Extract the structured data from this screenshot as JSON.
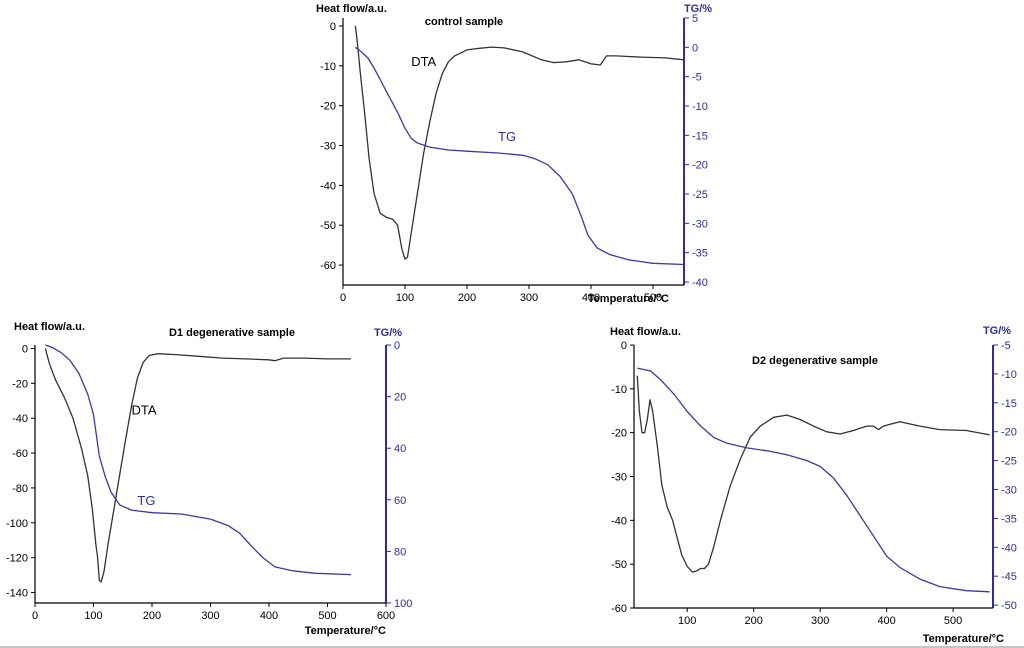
{
  "chart_data": [
    {
      "type": "line",
      "title": "control sample",
      "xlabel": "Temperature/°C",
      "ylabel": "Heat flow/a.u.",
      "y2label": "TG/%",
      "xlim": [
        0,
        550
      ],
      "ylim": [
        -65,
        2
      ],
      "y2lim": [
        -40.5,
        5
      ],
      "x_ticks": [
        0,
        100,
        200,
        300,
        400,
        500
      ],
      "y_ticks": [
        0,
        -10,
        -20,
        -30,
        -40,
        -50,
        -60
      ],
      "y2_ticks": [
        5,
        0,
        -5,
        -10,
        -15,
        -20,
        -25,
        -30,
        -35,
        -40
      ],
      "y2_inverted": false,
      "series": [
        {
          "name": "DTA",
          "axis": "left",
          "color": "#333333",
          "label": "DTA",
          "label_at": [
            110,
            -10
          ],
          "points": [
            [
              20,
              0
            ],
            [
              23,
              -4
            ],
            [
              28,
              -12
            ],
            [
              35,
              -22
            ],
            [
              42,
              -33
            ],
            [
              50,
              -42
            ],
            [
              60,
              -47
            ],
            [
              70,
              -48
            ],
            [
              80,
              -48.5
            ],
            [
              88,
              -50
            ],
            [
              95,
              -56
            ],
            [
              100,
              -58.5
            ],
            [
              104,
              -58
            ],
            [
              110,
              -52
            ],
            [
              120,
              -42
            ],
            [
              130,
              -32
            ],
            [
              140,
              -24
            ],
            [
              150,
              -17
            ],
            [
              160,
              -12
            ],
            [
              170,
              -9
            ],
            [
              180,
              -7.5
            ],
            [
              200,
              -6
            ],
            [
              220,
              -5.6
            ],
            [
              240,
              -5.3
            ],
            [
              260,
              -5.5
            ],
            [
              290,
              -6.5
            ],
            [
              320,
              -8.5
            ],
            [
              340,
              -9.2
            ],
            [
              360,
              -9
            ],
            [
              380,
              -8.5
            ],
            [
              400,
              -9.5
            ],
            [
              415,
              -9.8
            ],
            [
              425,
              -7.5
            ],
            [
              440,
              -7.5
            ],
            [
              480,
              -7.8
            ],
            [
              520,
              -8
            ],
            [
              550,
              -8.5
            ]
          ]
        },
        {
          "name": "TG",
          "axis": "right",
          "color": "#3a3aa0",
          "label": "TG",
          "label_at": [
            250,
            -16
          ],
          "points": [
            [
              20,
              0
            ],
            [
              30,
              -0.8
            ],
            [
              40,
              -1.8
            ],
            [
              50,
              -3.5
            ],
            [
              60,
              -5.5
            ],
            [
              70,
              -7.5
            ],
            [
              80,
              -9.5
            ],
            [
              90,
              -11.5
            ],
            [
              100,
              -13.8
            ],
            [
              110,
              -15.5
            ],
            [
              120,
              -16.3
            ],
            [
              140,
              -17
            ],
            [
              170,
              -17.5
            ],
            [
              200,
              -17.7
            ],
            [
              250,
              -18
            ],
            [
              290,
              -18.4
            ],
            [
              310,
              -19
            ],
            [
              330,
              -20
            ],
            [
              350,
              -22
            ],
            [
              370,
              -25
            ],
            [
              385,
              -29
            ],
            [
              395,
              -32
            ],
            [
              410,
              -34.2
            ],
            [
              430,
              -35.3
            ],
            [
              460,
              -36.2
            ],
            [
              500,
              -36.8
            ],
            [
              550,
              -37
            ]
          ]
        }
      ]
    },
    {
      "type": "line",
      "title": "D1 degenerative sample",
      "xlabel": "Temperature/°C",
      "ylabel": "Heat flow/a.u.",
      "y2label": "TG/%",
      "xlim": [
        0,
        600
      ],
      "ylim": [
        -146,
        2
      ],
      "y2lim": [
        0,
        100
      ],
      "x_ticks": [
        0,
        100,
        200,
        300,
        400,
        500,
        600
      ],
      "y_ticks": [
        0,
        -20,
        -40,
        -60,
        -80,
        -100,
        -120,
        -140
      ],
      "y2_ticks": [
        0,
        20,
        40,
        60,
        80,
        100
      ],
      "y2_inverted": true,
      "series": [
        {
          "name": "DTA",
          "axis": "left",
          "color": "#333333",
          "label": "DTA",
          "label_at": [
            165,
            -38
          ],
          "points": [
            [
              18,
              0
            ],
            [
              20,
              -3
            ],
            [
              25,
              -9
            ],
            [
              35,
              -18
            ],
            [
              50,
              -28
            ],
            [
              65,
              -40
            ],
            [
              80,
              -58
            ],
            [
              90,
              -73
            ],
            [
              98,
              -92
            ],
            [
              104,
              -112
            ],
            [
              107,
              -120
            ],
            [
              110,
              -133
            ],
            [
              113,
              -134
            ],
            [
              118,
              -128
            ],
            [
              125,
              -112
            ],
            [
              135,
              -92
            ],
            [
              145,
              -72
            ],
            [
              155,
              -52
            ],
            [
              165,
              -33
            ],
            [
              175,
              -17
            ],
            [
              185,
              -8
            ],
            [
              195,
              -4
            ],
            [
              210,
              -3
            ],
            [
              240,
              -3.5
            ],
            [
              280,
              -4.5
            ],
            [
              320,
              -5.5
            ],
            [
              360,
              -6
            ],
            [
              400,
              -6.5
            ],
            [
              410,
              -7
            ],
            [
              425,
              -5.5
            ],
            [
              460,
              -5.5
            ],
            [
              500,
              -6
            ],
            [
              540,
              -6
            ]
          ]
        },
        {
          "name": "TG",
          "axis": "right",
          "color": "#3a3aa0",
          "label": "TG",
          "label_at": [
            175,
            62
          ],
          "points": [
            [
              18,
              0
            ],
            [
              30,
              1
            ],
            [
              45,
              3
            ],
            [
              60,
              6
            ],
            [
              75,
              11
            ],
            [
              90,
              19
            ],
            [
              100,
              27
            ],
            [
              105,
              35
            ],
            [
              110,
              43
            ],
            [
              120,
              51
            ],
            [
              130,
              57
            ],
            [
              145,
              62
            ],
            [
              165,
              64
            ],
            [
              200,
              65
            ],
            [
              250,
              65.5
            ],
            [
              300,
              67.5
            ],
            [
              330,
              70
            ],
            [
              350,
              73
            ],
            [
              370,
              78
            ],
            [
              390,
              82.5
            ],
            [
              410,
              86
            ],
            [
              440,
              87.5
            ],
            [
              480,
              88.5
            ],
            [
              540,
              89
            ]
          ]
        }
      ]
    },
    {
      "type": "line",
      "title": "D2 degenerative sample",
      "xlabel": "Temperature/°C",
      "ylabel": "Heat flow/a.u.",
      "y2label": "TG/%",
      "xlim": [
        20,
        560
      ],
      "ylim": [
        -60,
        0
      ],
      "y2lim": [
        -50.5,
        -5
      ],
      "x_ticks": [
        100,
        200,
        300,
        400,
        500
      ],
      "y_ticks": [
        0,
        -10,
        -20,
        -30,
        -40,
        -50,
        -60
      ],
      "y2_ticks": [
        -5,
        -10,
        -15,
        -20,
        -25,
        -30,
        -35,
        -40,
        -45,
        -50
      ],
      "y2_inverted": false,
      "series": [
        {
          "name": "DTA",
          "axis": "left",
          "color": "#333333",
          "points": [
            [
              25,
              -7
            ],
            [
              28,
              -15
            ],
            [
              32,
              -20
            ],
            [
              36,
              -20
            ],
            [
              40,
              -17
            ],
            [
              44,
              -12.5
            ],
            [
              48,
              -15
            ],
            [
              55,
              -23
            ],
            [
              62,
              -32
            ],
            [
              70,
              -37
            ],
            [
              78,
              -40
            ],
            [
              85,
              -44
            ],
            [
              92,
              -48
            ],
            [
              100,
              -50.5
            ],
            [
              108,
              -51.8
            ],
            [
              115,
              -51.5
            ],
            [
              120,
              -51
            ],
            [
              126,
              -51
            ],
            [
              132,
              -50
            ],
            [
              140,
              -46
            ],
            [
              150,
              -40
            ],
            [
              165,
              -32
            ],
            [
              180,
              -26
            ],
            [
              195,
              -21
            ],
            [
              210,
              -18.5
            ],
            [
              230,
              -16.5
            ],
            [
              250,
              -16
            ],
            [
              270,
              -17
            ],
            [
              290,
              -18.5
            ],
            [
              310,
              -19.8
            ],
            [
              330,
              -20.3
            ],
            [
              350,
              -19.5
            ],
            [
              370,
              -18.5
            ],
            [
              380,
              -18.5
            ],
            [
              388,
              -19.3
            ],
            [
              395,
              -18.5
            ],
            [
              420,
              -17.5
            ],
            [
              450,
              -18.5
            ],
            [
              480,
              -19.3
            ],
            [
              520,
              -19.5
            ],
            [
              555,
              -20.5
            ]
          ]
        },
        {
          "name": "TG",
          "axis": "right",
          "color": "#3a3aa0",
          "points": [
            [
              25,
              -9
            ],
            [
              45,
              -9.5
            ],
            [
              60,
              -11
            ],
            [
              80,
              -13.5
            ],
            [
              100,
              -16.5
            ],
            [
              120,
              -19
            ],
            [
              140,
              -21
            ],
            [
              160,
              -22
            ],
            [
              190,
              -22.8
            ],
            [
              220,
              -23.3
            ],
            [
              250,
              -24
            ],
            [
              280,
              -25
            ],
            [
              300,
              -26
            ],
            [
              320,
              -28
            ],
            [
              340,
              -31
            ],
            [
              360,
              -34.5
            ],
            [
              380,
              -38
            ],
            [
              400,
              -41.5
            ],
            [
              420,
              -43.5
            ],
            [
              450,
              -45.5
            ],
            [
              480,
              -46.8
            ],
            [
              520,
              -47.5
            ],
            [
              555,
              -47.7
            ]
          ]
        }
      ]
    }
  ]
}
